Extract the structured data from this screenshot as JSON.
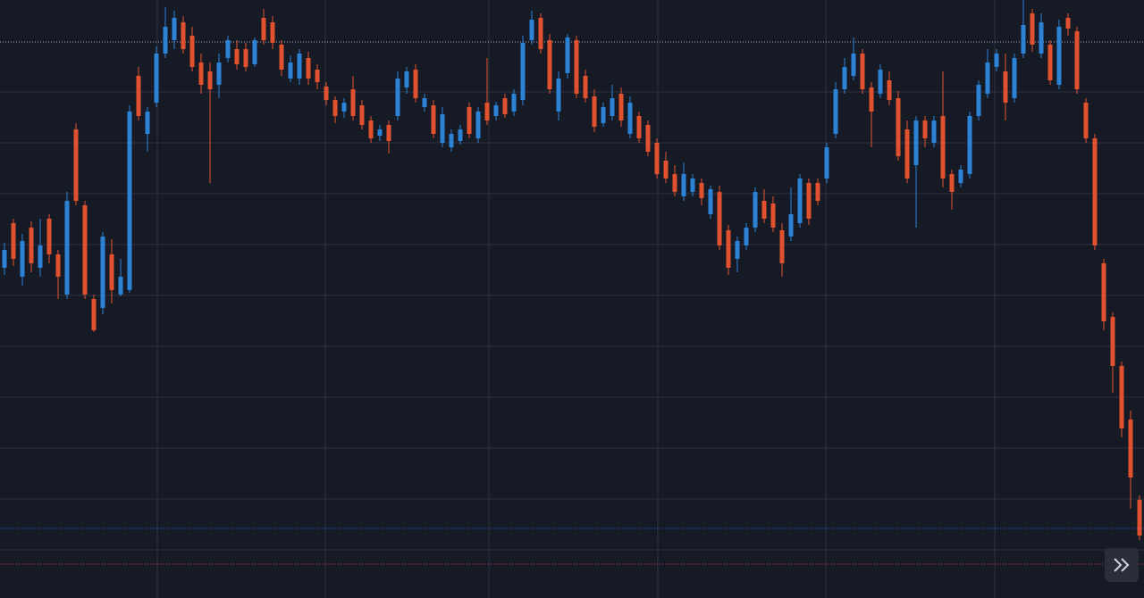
{
  "chart_data": {
    "type": "candlestick",
    "ylim": [
      0,
      670
    ],
    "yticks": [
      54,
      111,
      168,
      225,
      282,
      339,
      396,
      453,
      510,
      567
    ],
    "xlim": [
      -0.5,
      127.5
    ],
    "xticks": [
      17.1,
      35.9,
      54.2,
      73.1,
      91.9,
      110.8
    ],
    "grid": true,
    "up_color": "#2c83d6",
    "down_color": "#e2512f",
    "price_lines": [
      {
        "value": 623,
        "color": "#b2b5be"
      },
      {
        "value": 78,
        "color": "#2962ff"
      },
      {
        "value": 38,
        "color": "#f23645"
      }
    ],
    "open": [
      370,
      420,
      360,
      415,
      370,
      425,
      385,
      340,
      525,
      440,
      335,
      325,
      385,
      340,
      345,
      585,
      520,
      555,
      610,
      625,
      645,
      630,
      600,
      590,
      575,
      605,
      615,
      615,
      598,
      650,
      645,
      620,
      582,
      582,
      605,
      592,
      573,
      558,
      545,
      570,
      552,
      535,
      518,
      530,
      540,
      572,
      592,
      550,
      552,
      510,
      505,
      512,
      550,
      515,
      555,
      540,
      560,
      545,
      558,
      625,
      650,
      625,
      545,
      588,
      625,
      585,
      562,
      532,
      540,
      565,
      520,
      540,
      530,
      510,
      490,
      475,
      450,
      455,
      465,
      430,
      455,
      412,
      380,
      395,
      415,
      445,
      442,
      412,
      405,
      420,
      465,
      465,
      470,
      520,
      570,
      585,
      610,
      572,
      565,
      580,
      560,
      525,
      485,
      535,
      510,
      540,
      475,
      465,
      475,
      540,
      565,
      595,
      590,
      560,
      610,
      655,
      610,
      620,
      575,
      650,
      635,
      555,
      515,
      375,
      315,
      260,
      200,
      110
    ],
    "high": [
      398,
      425,
      408,
      422,
      425,
      430,
      390,
      455,
      532,
      445,
      340,
      410,
      402,
      380,
      552,
      595,
      550,
      618,
      662,
      658,
      652,
      640,
      610,
      600,
      610,
      630,
      625,
      622,
      628,
      660,
      652,
      625,
      608,
      615,
      612,
      598,
      578,
      562,
      560,
      585,
      558,
      540,
      530,
      535,
      590,
      595,
      598,
      565,
      558,
      550,
      525,
      530,
      555,
      550,
      605,
      556,
      565,
      570,
      630,
      658,
      655,
      632,
      590,
      632,
      630,
      592,
      570,
      555,
      575,
      572,
      562,
      545,
      535,
      515,
      500,
      485,
      488,
      475,
      470,
      462,
      462,
      418,
      405,
      420,
      460,
      458,
      450,
      420,
      460,
      475,
      470,
      470,
      510,
      578,
      605,
      628,
      615,
      578,
      598,
      590,
      568,
      535,
      540,
      540,
      540,
      590,
      480,
      485,
      545,
      580,
      615,
      615,
      610,
      610,
      670,
      660,
      655,
      625,
      648,
      655,
      640,
      560,
      520,
      380,
      320,
      265,
      210,
      115
    ],
    "low": [
      362,
      372,
      350,
      365,
      360,
      375,
      335,
      335,
      440,
      335,
      298,
      318,
      330,
      338,
      342,
      535,
      500,
      550,
      605,
      615,
      610,
      590,
      565,
      465,
      560,
      600,
      592,
      590,
      595,
      620,
      615,
      585,
      578,
      575,
      575,
      570,
      552,
      532,
      538,
      535,
      525,
      510,
      512,
      498,
      535,
      565,
      555,
      545,
      515,
      505,
      500,
      508,
      515,
      510,
      530,
      535,
      538,
      540,
      552,
      620,
      610,
      565,
      535,
      582,
      560,
      555,
      522,
      528,
      535,
      528,
      515,
      510,
      495,
      470,
      465,
      450,
      445,
      450,
      440,
      425,
      390,
      362,
      365,
      390,
      410,
      420,
      410,
      360,
      400,
      415,
      418,
      440,
      465,
      515,
      565,
      580,
      565,
      505,
      560,
      552,
      490,
      465,
      415,
      505,
      505,
      460,
      435,
      460,
      470,
      535,
      560,
      590,
      535,
      555,
      605,
      612,
      605,
      575,
      570,
      630,
      565,
      510,
      390,
      300,
      230,
      180,
      100,
      65
    ],
    "close": [
      390,
      380,
      400,
      375,
      395,
      385,
      360,
      445,
      445,
      340,
      300,
      405,
      345,
      360,
      545,
      540,
      545,
      610,
      640,
      650,
      615,
      595,
      575,
      570,
      600,
      625,
      598,
      595,
      625,
      625,
      622,
      592,
      600,
      610,
      582,
      578,
      558,
      540,
      555,
      540,
      530,
      515,
      525,
      512,
      582,
      590,
      560,
      560,
      520,
      542,
      520,
      525,
      520,
      545,
      535,
      552,
      542,
      565,
      622,
      648,
      615,
      570,
      582,
      628,
      565,
      560,
      528,
      550,
      560,
      535,
      555,
      515,
      500,
      475,
      470,
      455,
      475,
      470,
      448,
      458,
      395,
      370,
      400,
      415,
      455,
      425,
      415,
      375,
      430,
      470,
      425,
      445,
      505,
      570,
      595,
      610,
      570,
      545,
      592,
      558,
      495,
      470,
      535,
      515,
      535,
      470,
      455,
      480,
      540,
      575,
      600,
      610,
      555,
      605,
      642,
      620,
      645,
      580,
      640,
      638,
      570,
      515,
      395,
      310,
      260,
      190,
      135,
      70
    ]
  }
}
